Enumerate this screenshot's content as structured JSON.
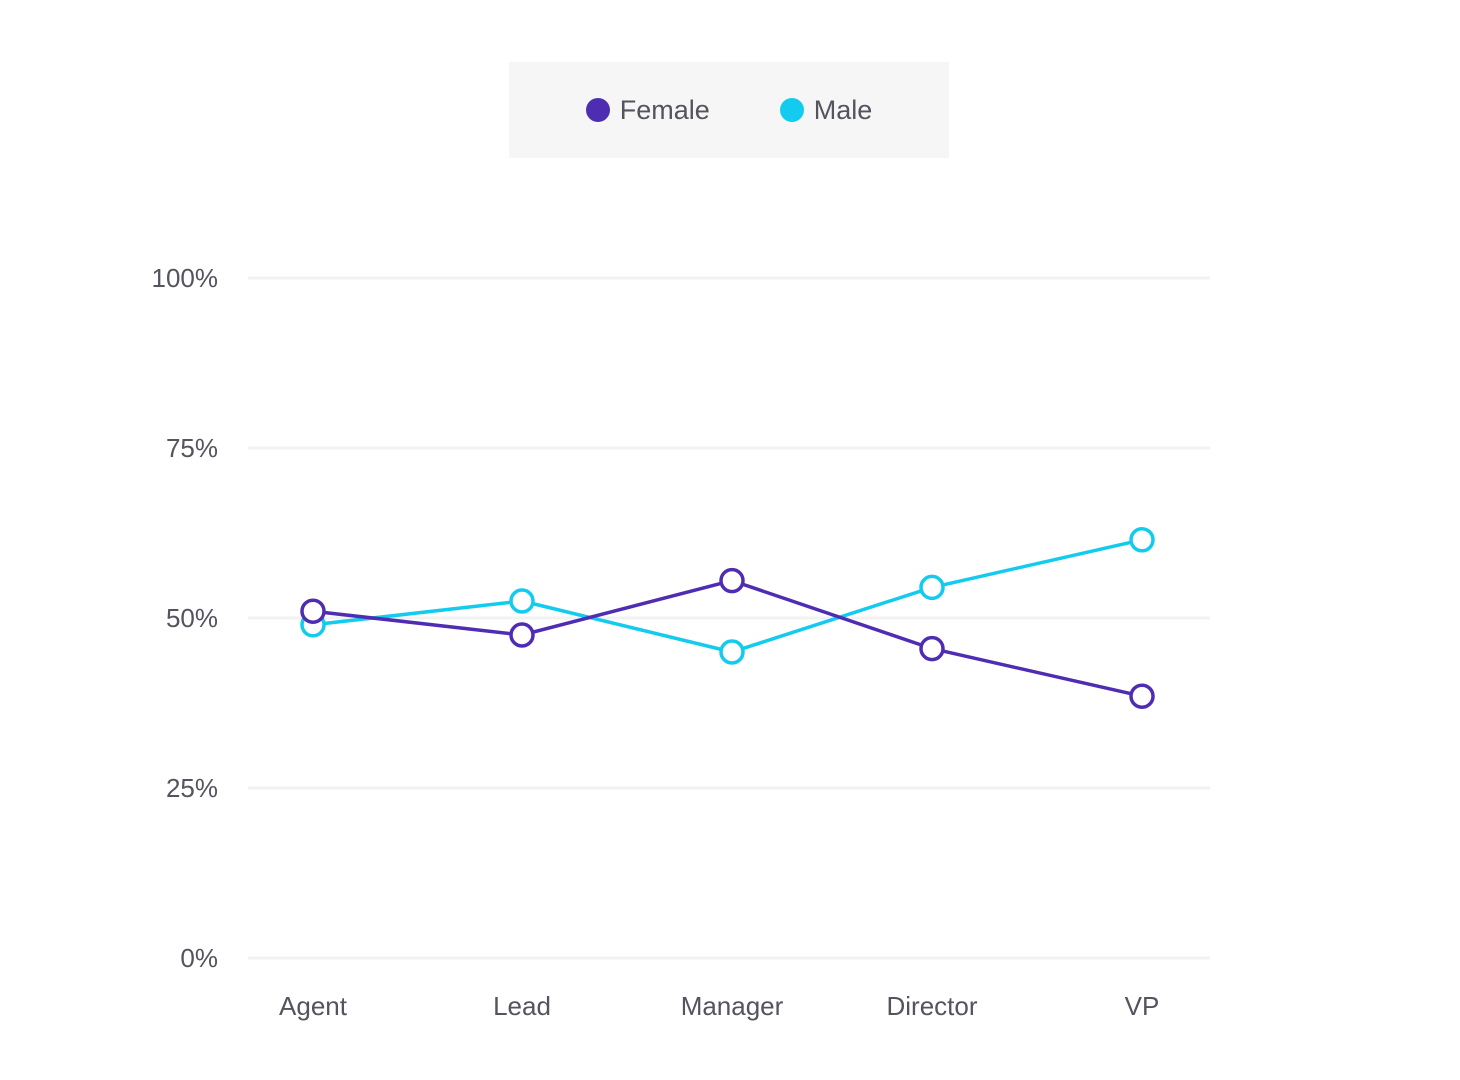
{
  "colors": {
    "female": "#4f2db3",
    "male": "#12cbee",
    "grid": "#f2f2f2",
    "text": "#55535e"
  },
  "legend": {
    "female_label": "Female",
    "male_label": "Male"
  },
  "chart_data": {
    "type": "line",
    "categories": [
      "Agent",
      "Lead",
      "Manager",
      "Director",
      "VP"
    ],
    "series": [
      {
        "name": "Female",
        "values": [
          51,
          47.5,
          55.5,
          45.5,
          38.5
        ]
      },
      {
        "name": "Male",
        "values": [
          49,
          52.5,
          45,
          54.5,
          61.5
        ]
      }
    ],
    "y_ticks": [
      "0%",
      "25%",
      "50%",
      "75%",
      "100%"
    ],
    "ylim": [
      0,
      100
    ],
    "grid": true,
    "legend_position": "top-center"
  }
}
